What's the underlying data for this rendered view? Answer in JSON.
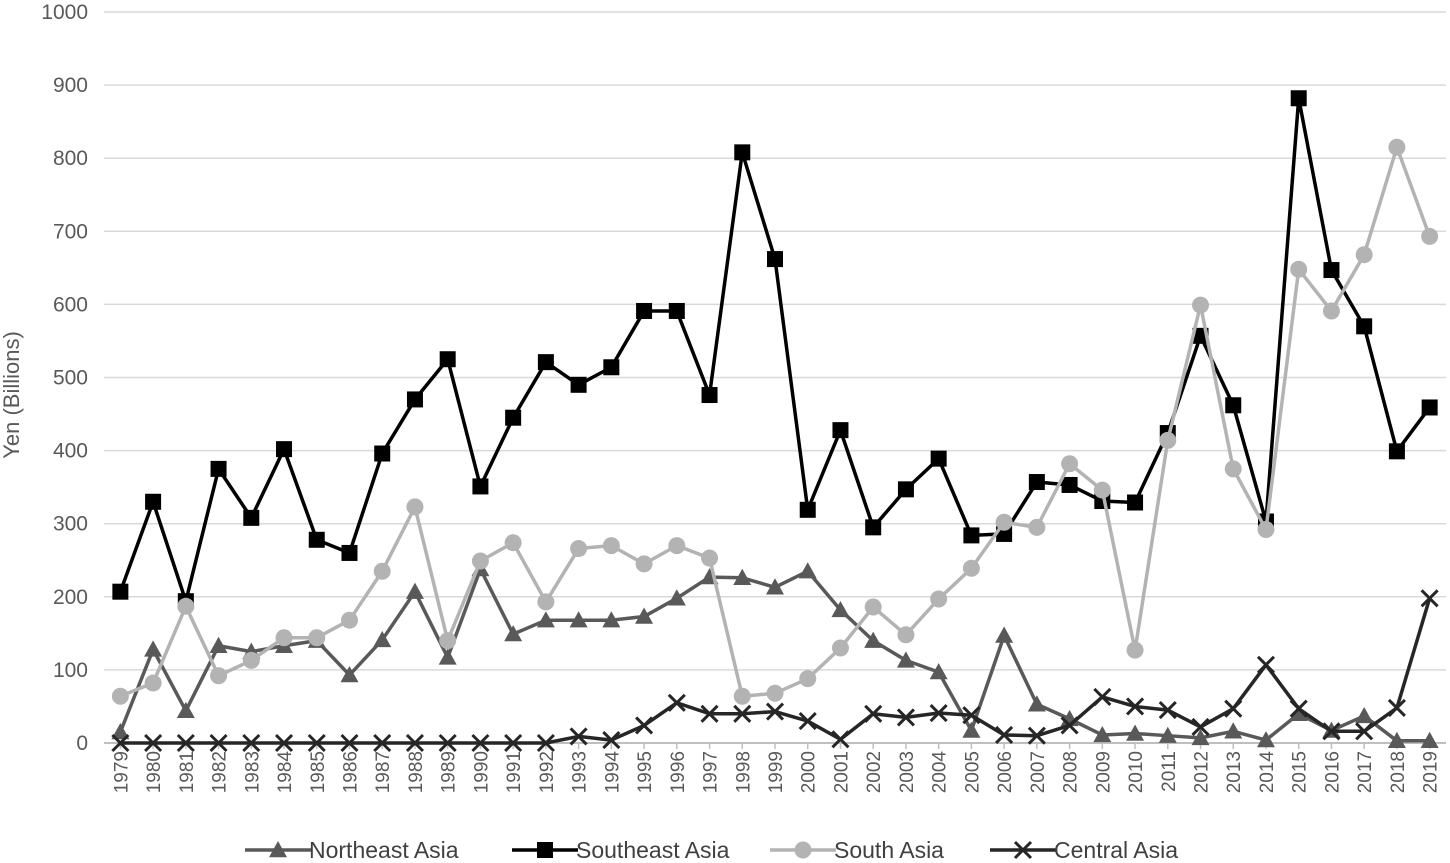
{
  "chart_data": {
    "type": "line",
    "title": "",
    "xlabel": "",
    "ylabel": "Yen (Billions)",
    "ylim": [
      0,
      1000
    ],
    "yticks": [
      "0",
      "100",
      "200",
      "300",
      "400",
      "500",
      "600",
      "700",
      "800",
      "900",
      "1000"
    ],
    "grid": true,
    "legend_position": "bottom",
    "categories": [
      "1979",
      "1980",
      "1981",
      "1982",
      "1983",
      "1984",
      "1985",
      "1986",
      "1987",
      "1988",
      "1989",
      "1990",
      "1991",
      "1992",
      "1993",
      "1994",
      "1995",
      "1996",
      "1997",
      "1998",
      "1999",
      "2000",
      "2001",
      "2002",
      "2003",
      "2004",
      "2005",
      "2006",
      "2007",
      "2008",
      "2009",
      "2010",
      "2011",
      "2012",
      "2013",
      "2014",
      "2015",
      "2016",
      "2017",
      "2018",
      "2019"
    ],
    "series": [
      {
        "name": "Northeast Asia",
        "color": "#595959",
        "marker": "triangle",
        "values": [
          15,
          128,
          44,
          133,
          125,
          133,
          140,
          93,
          141,
          207,
          117,
          238,
          149,
          168,
          168,
          168,
          173,
          198,
          227,
          226,
          213,
          235,
          182,
          140,
          113,
          97,
          17,
          147,
          53,
          33,
          11,
          13,
          10,
          7,
          16,
          4,
          40,
          17,
          37,
          3,
          3
        ]
      },
      {
        "name": "Southeast Asia",
        "color": "#000000",
        "marker": "square",
        "values": [
          207,
          330,
          194,
          375,
          308,
          402,
          278,
          260,
          396,
          470,
          525,
          351,
          445,
          521,
          490,
          514,
          591,
          591,
          476,
          808,
          662,
          319,
          428,
          295,
          347,
          389,
          284,
          286,
          357,
          353,
          331,
          329,
          424,
          557,
          462,
          303,
          882,
          647,
          570,
          399,
          459
        ]
      },
      {
        "name": "South Asia",
        "color": "#b3b3b3",
        "marker": "circle",
        "values": [
          64,
          82,
          187,
          92,
          113,
          144,
          144,
          168,
          235,
          323,
          140,
          249,
          274,
          193,
          266,
          270,
          245,
          270,
          253,
          64,
          68,
          88,
          130,
          186,
          148,
          197,
          239,
          302,
          295,
          382,
          346,
          127,
          414,
          599,
          375,
          292,
          648,
          591,
          668,
          815,
          693
        ]
      },
      {
        "name": "Central Asia",
        "color": "#262626",
        "marker": "x",
        "values": [
          0,
          0,
          0,
          0,
          0,
          0,
          0,
          0,
          0,
          0,
          0,
          0,
          0,
          0,
          9,
          4,
          24,
          55,
          40,
          40,
          43,
          30,
          5,
          40,
          35,
          41,
          38,
          11,
          10,
          24,
          63,
          50,
          45,
          22,
          47,
          107,
          47,
          16,
          16,
          48,
          198
        ]
      }
    ]
  }
}
